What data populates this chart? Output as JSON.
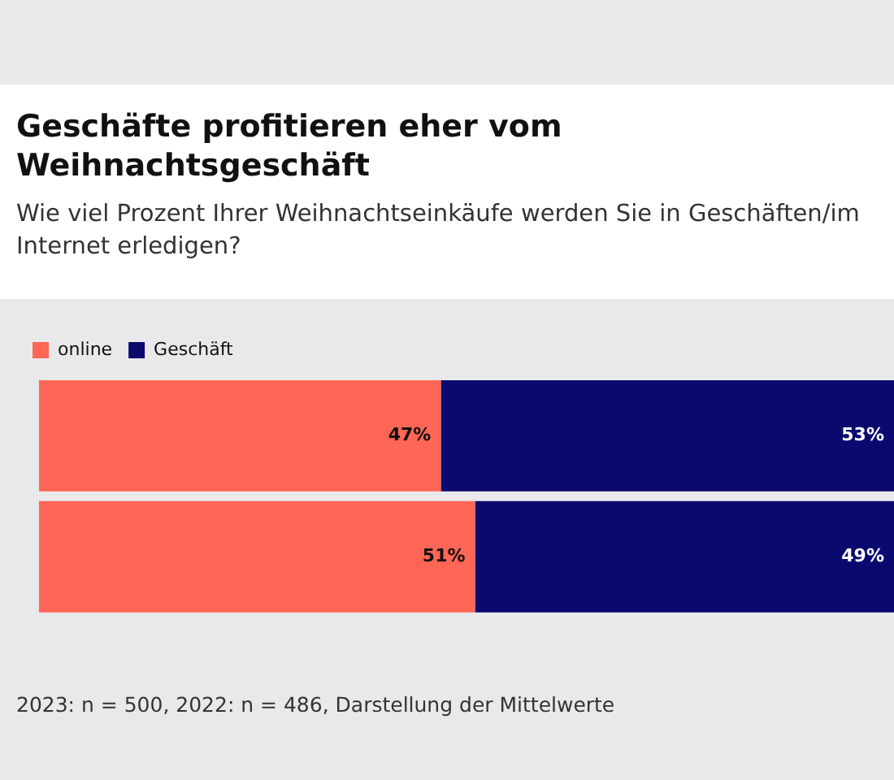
{
  "chart_data": {
    "type": "bar",
    "orientation": "horizontal",
    "stacked": true,
    "title": "Geschäfte profitieren eher vom Weihnachtsgeschäft",
    "subtitle": "Wie viel Prozent Ihrer Weihnachtseinkäufe werden Sie in Geschäften/im Internet erledigen?",
    "categories": [
      null,
      null
    ],
    "series": [
      {
        "name": "online",
        "color": "#ff6655",
        "values": [
          47,
          51
        ],
        "value_labels": [
          "47%",
          "51%"
        ]
      },
      {
        "name": "Geschäft",
        "color": "#0a0a6e",
        "values": [
          53,
          49
        ],
        "value_labels": [
          "53%",
          "49%"
        ]
      }
    ],
    "xlim": [
      0,
      100
    ],
    "legend": "top left",
    "annotations": [
      "2023: n = 500, 2022: n = 486, Darstellung der Mittelwerte"
    ]
  }
}
